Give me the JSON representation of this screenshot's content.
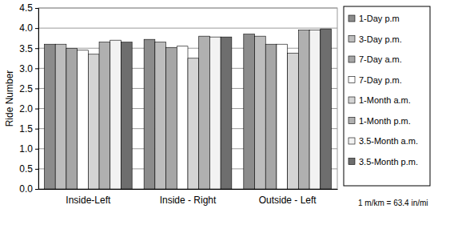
{
  "chart_data": {
    "type": "bar",
    "y_label": "Ride Number",
    "categories": [
      "Inside-Left",
      "Inside - Right",
      "Outside - Left"
    ],
    "series": [
      {
        "name": "1-Day p.m",
        "color": "#8c8c8c",
        "values": [
          3.6,
          3.72,
          3.85
        ]
      },
      {
        "name": "3-Day p.m.",
        "color": "#bdbdbd",
        "values": [
          3.6,
          3.65,
          3.8
        ]
      },
      {
        "name": "7-Day a.m.",
        "color": "#a6a6a6",
        "values": [
          3.5,
          3.52,
          3.6
        ]
      },
      {
        "name": "7-Day p.m.",
        "color": "#ffffff",
        "values": [
          3.45,
          3.55,
          3.6
        ]
      },
      {
        "name": "1-Month a.m.",
        "color": "#d4d4d4",
        "values": [
          3.35,
          3.25,
          3.38
        ]
      },
      {
        "name": "1-Month p.m.",
        "color": "#b0b0b0",
        "values": [
          3.65,
          3.8,
          3.95
        ]
      },
      {
        "name": "3.5-Month a.m.",
        "color": "#f2f2f2",
        "values": [
          3.7,
          3.78,
          3.95
        ]
      },
      {
        "name": "3.5-Month p.m.",
        "color": "#6e6e6e",
        "values": [
          3.65,
          3.78,
          3.98
        ]
      }
    ],
    "ylim": [
      0,
      4.5
    ],
    "yticks": [
      {
        "value": 0,
        "label": "0.0"
      },
      0.5,
      {
        "value": 1,
        "label": "1.0"
      },
      1.5,
      {
        "value": 2,
        "label": "2.0"
      },
      2.5,
      {
        "value": 3,
        "label": "3.0"
      },
      3.5,
      {
        "value": 4,
        "label": "4.0"
      },
      4.5
    ],
    "grid": true,
    "legend": "right",
    "annotations": [
      "1 m/km = 63.4 in/mi"
    ]
  }
}
